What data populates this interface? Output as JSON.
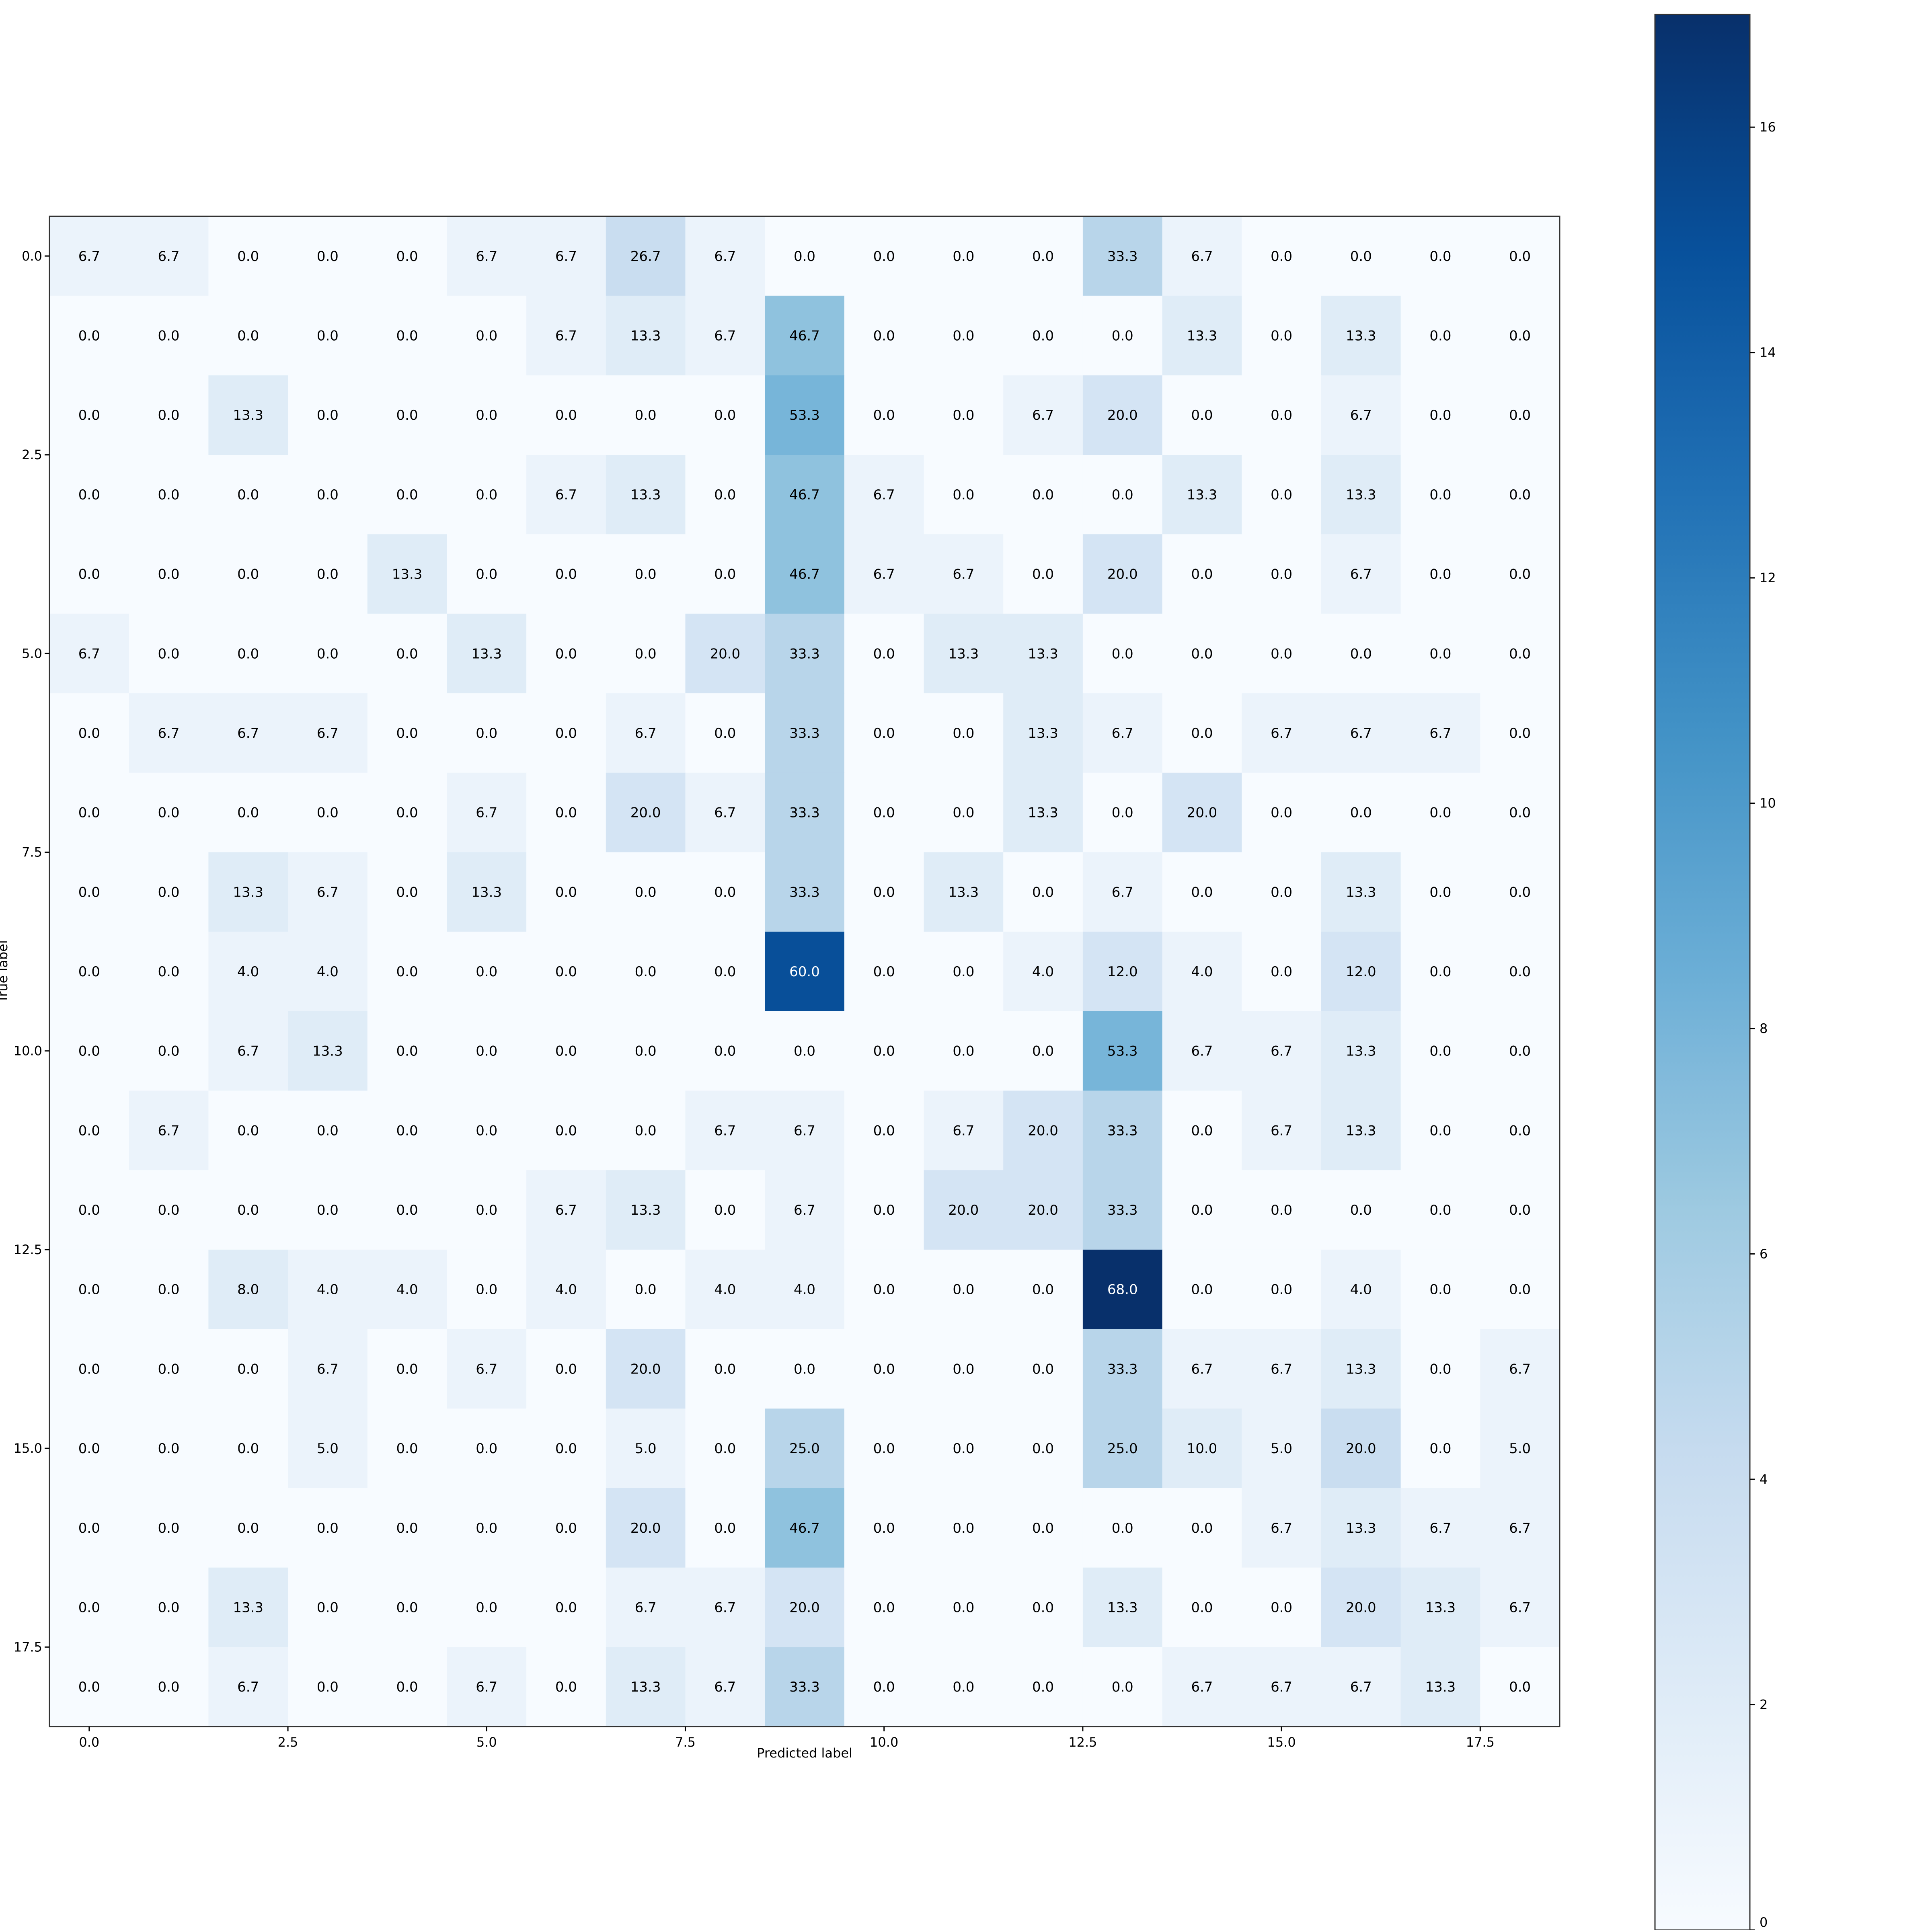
{
  "chart_data": {
    "type": "heatmap",
    "title": "",
    "xlabel": "Predicted label",
    "ylabel": "True label",
    "x_ticks": [
      "0.0",
      "2.5",
      "5.0",
      "7.5",
      "10.0",
      "12.5",
      "15.0",
      "17.5"
    ],
    "y_ticks": [
      "0.0",
      "2.5",
      "5.0",
      "7.5",
      "10.0",
      "12.5",
      "15.0",
      "17.5"
    ],
    "x_tick_values": [
      0,
      2.5,
      5,
      7.5,
      10,
      12.5,
      15,
      17.5
    ],
    "y_tick_values": [
      0,
      2.5,
      5,
      7.5,
      10,
      12.5,
      15,
      17.5
    ],
    "xlim": [
      -0.5,
      18.5
    ],
    "ylim": [
      18.5,
      -0.5
    ],
    "colormap": "Blues",
    "colorbar": {
      "range": [
        0,
        17
      ],
      "ticks": [
        0,
        2,
        4,
        6,
        8,
        10,
        12,
        14,
        16
      ],
      "tick_labels": [
        "0",
        "2",
        "4",
        "6",
        "8",
        "10",
        "12",
        "14",
        "16"
      ]
    },
    "cell_values": [
      [
        1,
        1,
        0,
        0,
        0,
        1,
        1,
        4,
        1,
        0,
        0,
        0,
        0,
        5,
        1,
        0,
        0,
        0,
        0
      ],
      [
        0,
        0,
        0,
        0,
        0,
        0,
        1,
        2,
        1,
        7,
        0,
        0,
        0,
        0,
        2,
        0,
        2,
        0,
        0
      ],
      [
        0,
        0,
        2,
        0,
        0,
        0,
        0,
        0,
        0,
        8,
        0,
        0,
        1,
        3,
        0,
        0,
        1,
        0,
        0
      ],
      [
        0,
        0,
        0,
        0,
        0,
        0,
        1,
        2,
        0,
        7,
        1,
        0,
        0,
        0,
        2,
        0,
        2,
        0,
        0
      ],
      [
        0,
        0,
        0,
        0,
        2,
        0,
        0,
        0,
        0,
        7,
        1,
        1,
        0,
        3,
        0,
        0,
        1,
        0,
        0
      ],
      [
        1,
        0,
        0,
        0,
        0,
        2,
        0,
        0,
        3,
        5,
        0,
        2,
        2,
        0,
        0,
        0,
        0,
        0,
        0
      ],
      [
        0,
        1,
        1,
        1,
        0,
        0,
        0,
        1,
        0,
        5,
        0,
        0,
        2,
        1,
        0,
        1,
        1,
        1,
        0
      ],
      [
        0,
        0,
        0,
        0,
        0,
        1,
        0,
        3,
        1,
        5,
        0,
        0,
        2,
        0,
        3,
        0,
        0,
        0,
        0
      ],
      [
        0,
        0,
        2,
        1,
        0,
        2,
        0,
        0,
        0,
        5,
        0,
        2,
        0,
        1,
        0,
        0,
        2,
        0,
        0
      ],
      [
        0,
        0,
        1,
        1,
        0,
        0,
        0,
        0,
        0,
        15,
        0,
        0,
        1,
        3,
        1,
        0,
        3,
        0,
        0
      ],
      [
        0,
        0,
        1,
        2,
        0,
        0,
        0,
        0,
        0,
        0,
        0,
        0,
        0,
        8,
        1,
        1,
        2,
        0,
        0
      ],
      [
        0,
        1,
        0,
        0,
        0,
        0,
        0,
        0,
        1,
        1,
        0,
        1,
        3,
        5,
        0,
        1,
        2,
        0,
        0
      ],
      [
        0,
        0,
        0,
        0,
        0,
        0,
        1,
        2,
        0,
        1,
        0,
        3,
        3,
        5,
        0,
        0,
        0,
        0,
        0
      ],
      [
        0,
        0,
        2,
        1,
        1,
        0,
        1,
        0,
        1,
        1,
        0,
        0,
        0,
        17,
        0,
        0,
        1,
        0,
        0
      ],
      [
        0,
        0,
        0,
        1,
        0,
        1,
        0,
        3,
        0,
        0,
        0,
        0,
        0,
        5,
        1,
        1,
        2,
        0,
        1
      ],
      [
        0,
        0,
        0,
        1,
        0,
        0,
        0,
        1,
        0,
        5,
        0,
        0,
        0,
        5,
        2,
        1,
        4,
        0,
        1
      ],
      [
        0,
        0,
        0,
        0,
        0,
        0,
        0,
        3,
        0,
        7,
        0,
        0,
        0,
        0,
        0,
        1,
        2,
        1,
        1
      ],
      [
        0,
        0,
        2,
        0,
        0,
        0,
        0,
        1,
        1,
        3,
        0,
        0,
        0,
        2,
        0,
        0,
        3,
        2,
        1
      ],
      [
        0,
        0,
        1,
        0,
        0,
        1,
        0,
        2,
        1,
        5,
        0,
        0,
        0,
        0,
        1,
        1,
        1,
        2,
        0
      ]
    ],
    "annotations": [
      [
        "6.7",
        "6.7",
        "0.0",
        "0.0",
        "0.0",
        "6.7",
        "6.7",
        "26.7",
        "6.7",
        "0.0",
        "0.0",
        "0.0",
        "0.0",
        "33.3",
        "6.7",
        "0.0",
        "0.0",
        "0.0",
        "0.0"
      ],
      [
        "0.0",
        "0.0",
        "0.0",
        "0.0",
        "0.0",
        "0.0",
        "6.7",
        "13.3",
        "6.7",
        "46.7",
        "0.0",
        "0.0",
        "0.0",
        "0.0",
        "13.3",
        "0.0",
        "13.3",
        "0.0",
        "0.0"
      ],
      [
        "0.0",
        "0.0",
        "13.3",
        "0.0",
        "0.0",
        "0.0",
        "0.0",
        "0.0",
        "0.0",
        "53.3",
        "0.0",
        "0.0",
        "6.7",
        "20.0",
        "0.0",
        "0.0",
        "6.7",
        "0.0",
        "0.0"
      ],
      [
        "0.0",
        "0.0",
        "0.0",
        "0.0",
        "0.0",
        "0.0",
        "6.7",
        "13.3",
        "0.0",
        "46.7",
        "6.7",
        "0.0",
        "0.0",
        "0.0",
        "13.3",
        "0.0",
        "13.3",
        "0.0",
        "0.0"
      ],
      [
        "0.0",
        "0.0",
        "0.0",
        "0.0",
        "13.3",
        "0.0",
        "0.0",
        "0.0",
        "0.0",
        "46.7",
        "6.7",
        "6.7",
        "0.0",
        "20.0",
        "0.0",
        "0.0",
        "6.7",
        "0.0",
        "0.0"
      ],
      [
        "6.7",
        "0.0",
        "0.0",
        "0.0",
        "0.0",
        "13.3",
        "0.0",
        "0.0",
        "20.0",
        "33.3",
        "0.0",
        "13.3",
        "13.3",
        "0.0",
        "0.0",
        "0.0",
        "0.0",
        "0.0",
        "0.0"
      ],
      [
        "0.0",
        "6.7",
        "6.7",
        "6.7",
        "0.0",
        "0.0",
        "0.0",
        "6.7",
        "0.0",
        "33.3",
        "0.0",
        "0.0",
        "13.3",
        "6.7",
        "0.0",
        "6.7",
        "6.7",
        "6.7",
        "0.0"
      ],
      [
        "0.0",
        "0.0",
        "0.0",
        "0.0",
        "0.0",
        "6.7",
        "0.0",
        "20.0",
        "6.7",
        "33.3",
        "0.0",
        "0.0",
        "13.3",
        "0.0",
        "20.0",
        "0.0",
        "0.0",
        "0.0",
        "0.0"
      ],
      [
        "0.0",
        "0.0",
        "13.3",
        "6.7",
        "0.0",
        "13.3",
        "0.0",
        "0.0",
        "0.0",
        "33.3",
        "0.0",
        "13.3",
        "0.0",
        "6.7",
        "0.0",
        "0.0",
        "13.3",
        "0.0",
        "0.0"
      ],
      [
        "0.0",
        "0.0",
        "4.0",
        "4.0",
        "0.0",
        "0.0",
        "0.0",
        "0.0",
        "0.0",
        "60.0",
        "0.0",
        "0.0",
        "4.0",
        "12.0",
        "4.0",
        "0.0",
        "12.0",
        "0.0",
        "0.0"
      ],
      [
        "0.0",
        "0.0",
        "6.7",
        "13.3",
        "0.0",
        "0.0",
        "0.0",
        "0.0",
        "0.0",
        "0.0",
        "0.0",
        "0.0",
        "0.0",
        "53.3",
        "6.7",
        "6.7",
        "13.3",
        "0.0",
        "0.0"
      ],
      [
        "0.0",
        "6.7",
        "0.0",
        "0.0",
        "0.0",
        "0.0",
        "0.0",
        "0.0",
        "6.7",
        "6.7",
        "0.0",
        "6.7",
        "20.0",
        "33.3",
        "0.0",
        "6.7",
        "13.3",
        "0.0",
        "0.0"
      ],
      [
        "0.0",
        "0.0",
        "0.0",
        "0.0",
        "0.0",
        "0.0",
        "6.7",
        "13.3",
        "0.0",
        "6.7",
        "0.0",
        "20.0",
        "20.0",
        "33.3",
        "0.0",
        "0.0",
        "0.0",
        "0.0",
        "0.0"
      ],
      [
        "0.0",
        "0.0",
        "8.0",
        "4.0",
        "4.0",
        "0.0",
        "4.0",
        "0.0",
        "4.0",
        "4.0",
        "0.0",
        "0.0",
        "0.0",
        "68.0",
        "0.0",
        "0.0",
        "4.0",
        "0.0",
        "0.0"
      ],
      [
        "0.0",
        "0.0",
        "0.0",
        "6.7",
        "0.0",
        "6.7",
        "0.0",
        "20.0",
        "0.0",
        "0.0",
        "0.0",
        "0.0",
        "0.0",
        "33.3",
        "6.7",
        "6.7",
        "13.3",
        "0.0",
        "6.7"
      ],
      [
        "0.0",
        "0.0",
        "0.0",
        "5.0",
        "0.0",
        "0.0",
        "0.0",
        "5.0",
        "0.0",
        "25.0",
        "0.0",
        "0.0",
        "0.0",
        "25.0",
        "10.0",
        "5.0",
        "20.0",
        "0.0",
        "5.0"
      ],
      [
        "0.0",
        "0.0",
        "0.0",
        "0.0",
        "0.0",
        "0.0",
        "0.0",
        "20.0",
        "0.0",
        "46.7",
        "0.0",
        "0.0",
        "0.0",
        "0.0",
        "0.0",
        "6.7",
        "13.3",
        "6.7",
        "6.7"
      ],
      [
        "0.0",
        "0.0",
        "13.3",
        "0.0",
        "0.0",
        "0.0",
        "0.0",
        "6.7",
        "6.7",
        "20.0",
        "0.0",
        "0.0",
        "0.0",
        "13.3",
        "0.0",
        "0.0",
        "20.0",
        "13.3",
        "6.7"
      ],
      [
        "0.0",
        "0.0",
        "6.7",
        "0.0",
        "0.0",
        "6.7",
        "0.0",
        "13.3",
        "6.7",
        "33.3",
        "0.0",
        "0.0",
        "0.0",
        "0.0",
        "6.7",
        "6.7",
        "6.7",
        "13.3",
        "0.0"
      ]
    ]
  }
}
